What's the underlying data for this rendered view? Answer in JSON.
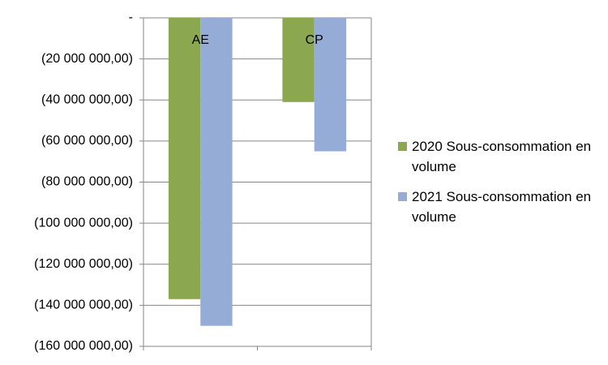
{
  "chart_data": {
    "type": "bar",
    "categories": [
      "AE",
      "CP"
    ],
    "series": [
      {
        "name": "2020 Sous-consommation en volume",
        "color": "#8ba74f",
        "values": [
          -137000000,
          -41000000
        ]
      },
      {
        "name": "2021 Sous-consommation en volume",
        "color": "#95acd6",
        "values": [
          -150000000,
          -65000000
        ]
      }
    ],
    "ylim": [
      -160000000,
      0
    ],
    "yticks": [
      {
        "value": 0,
        "label": "-"
      },
      {
        "value": -20000000,
        "label": "(20 000 000,00)"
      },
      {
        "value": -40000000,
        "label": "(40 000 000,00)"
      },
      {
        "value": -60000000,
        "label": "(60 000 000,00)"
      },
      {
        "value": -80000000,
        "label": "(80 000 000,00)"
      },
      {
        "value": -100000000,
        "label": "(100 000 000,00)"
      },
      {
        "value": -120000000,
        "label": "(120 000 000,00)"
      },
      {
        "value": -140000000,
        "label": "(140 000 000,00)"
      },
      {
        "value": -160000000,
        "label": "(160 000 000,00)"
      }
    ],
    "grid": true,
    "legend": "right"
  }
}
